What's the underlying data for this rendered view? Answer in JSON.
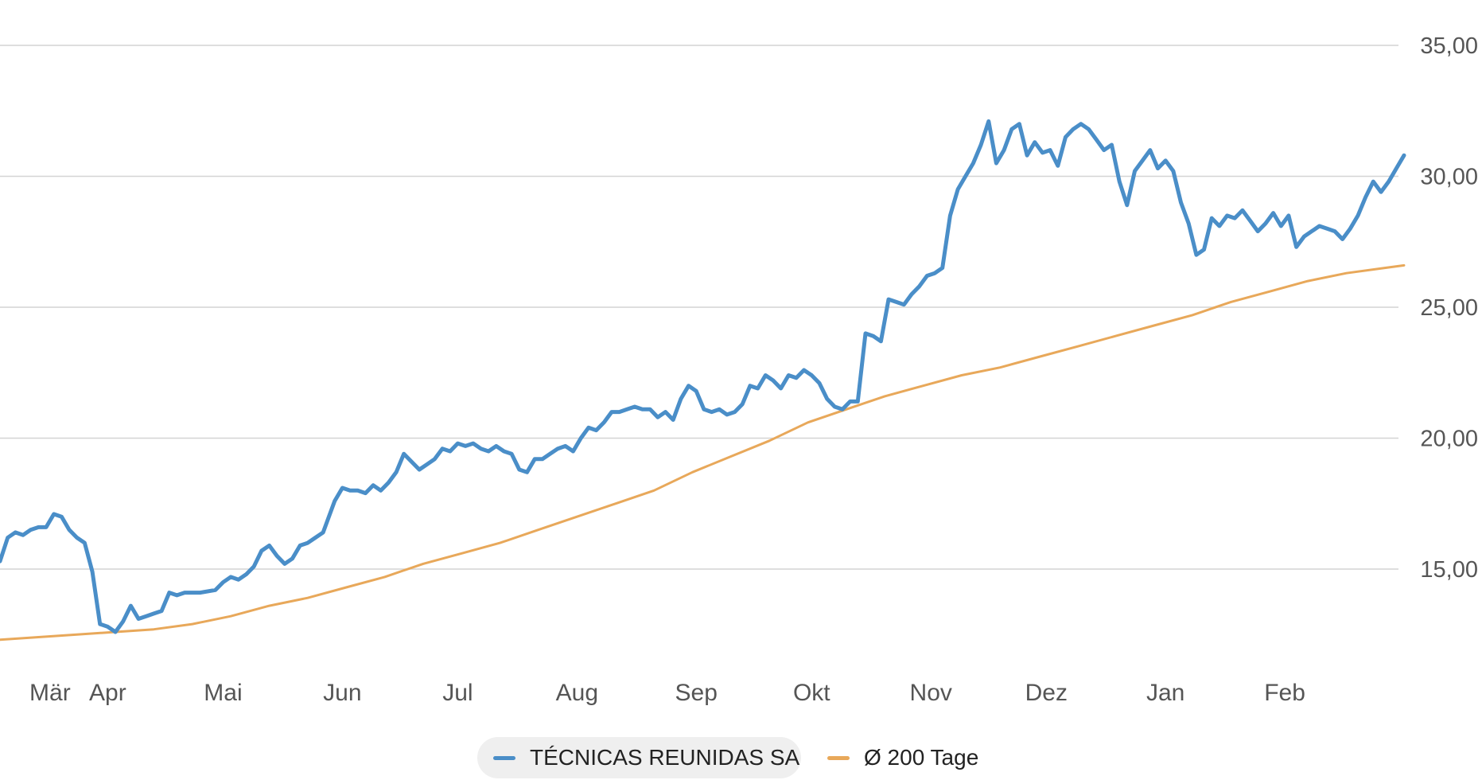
{
  "colors": {
    "price": "#4a8ec8",
    "avg": "#e8a85a",
    "grid": "#d4d4d4",
    "text": "#555555"
  },
  "legend": [
    {
      "label": "TÉCNICAS REUNIDAS SA",
      "color": "#4a8ec8"
    },
    {
      "label": "Ø 200 Tage",
      "color": "#e8a85a"
    }
  ],
  "chart_data": {
    "type": "line",
    "x_unit": "days since 2024-03-01",
    "xlim": [
      0,
      365
    ],
    "ylim": [
      12.8,
      36.8
    ],
    "y_axis_side": "right",
    "y_ticks": [
      15,
      20,
      25,
      30,
      35
    ],
    "y_tick_labels": [
      "15,00",
      "20,00",
      "25,00",
      "30,00",
      "35,00"
    ],
    "x_ticks": [
      {
        "label": "Mär",
        "x": 13
      },
      {
        "label": "Apr",
        "x": 28
      },
      {
        "label": "Mai",
        "x": 58
      },
      {
        "label": "Jun",
        "x": 89
      },
      {
        "label": "Jul",
        "x": 119
      },
      {
        "label": "Aug",
        "x": 150
      },
      {
        "label": "Sep",
        "x": 181
      },
      {
        "label": "Okt",
        "x": 211
      },
      {
        "label": "Nov",
        "x": 242
      },
      {
        "label": "Dez",
        "x": 272
      },
      {
        "label": "Jan",
        "x": 303
      },
      {
        "label": "Feb",
        "x": 334
      }
    ],
    "grid": "horizontal",
    "legend_position": "bottom-center",
    "series": [
      {
        "name": "TÉCNICAS REUNIDAS SA",
        "color": "#4a8ec8",
        "points": [
          [
            0,
            15.3
          ],
          [
            2,
            16.2
          ],
          [
            4,
            16.4
          ],
          [
            6,
            16.3
          ],
          [
            8,
            16.5
          ],
          [
            10,
            16.6
          ],
          [
            12,
            16.6
          ],
          [
            14,
            17.1
          ],
          [
            16,
            17.0
          ],
          [
            18,
            16.5
          ],
          [
            20,
            16.2
          ],
          [
            22,
            16.0
          ],
          [
            24,
            14.9
          ],
          [
            26,
            12.9
          ],
          [
            28,
            12.8
          ],
          [
            30,
            12.6
          ],
          [
            32,
            13.0
          ],
          [
            34,
            13.6
          ],
          [
            36,
            13.1
          ],
          [
            38,
            13.2
          ],
          [
            40,
            13.3
          ],
          [
            42,
            13.4
          ],
          [
            44,
            14.1
          ],
          [
            46,
            14.0
          ],
          [
            48,
            14.1
          ],
          [
            52,
            14.1
          ],
          [
            56,
            14.2
          ],
          [
            58,
            14.5
          ],
          [
            60,
            14.7
          ],
          [
            62,
            14.6
          ],
          [
            64,
            14.8
          ],
          [
            66,
            15.1
          ],
          [
            68,
            15.7
          ],
          [
            70,
            15.9
          ],
          [
            72,
            15.5
          ],
          [
            74,
            15.2
          ],
          [
            76,
            15.4
          ],
          [
            78,
            15.9
          ],
          [
            80,
            16.0
          ],
          [
            82,
            16.2
          ],
          [
            84,
            16.4
          ],
          [
            85,
            16.8
          ],
          [
            87,
            17.6
          ],
          [
            89,
            18.1
          ],
          [
            91,
            18.0
          ],
          [
            93,
            18.0
          ],
          [
            95,
            17.9
          ],
          [
            97,
            18.2
          ],
          [
            99,
            18.0
          ],
          [
            101,
            18.3
          ],
          [
            103,
            18.7
          ],
          [
            105,
            19.4
          ],
          [
            107,
            19.1
          ],
          [
            109,
            18.8
          ],
          [
            111,
            19.0
          ],
          [
            113,
            19.2
          ],
          [
            115,
            19.6
          ],
          [
            117,
            19.5
          ],
          [
            119,
            19.8
          ],
          [
            121,
            19.7
          ],
          [
            123,
            19.8
          ],
          [
            125,
            19.6
          ],
          [
            127,
            19.5
          ],
          [
            129,
            19.7
          ],
          [
            131,
            19.5
          ],
          [
            133,
            19.4
          ],
          [
            135,
            18.8
          ],
          [
            137,
            18.7
          ],
          [
            139,
            19.2
          ],
          [
            141,
            19.2
          ],
          [
            143,
            19.4
          ],
          [
            145,
            19.6
          ],
          [
            147,
            19.7
          ],
          [
            149,
            19.5
          ],
          [
            151,
            20.0
          ],
          [
            153,
            20.4
          ],
          [
            155,
            20.3
          ],
          [
            157,
            20.6
          ],
          [
            159,
            21.0
          ],
          [
            161,
            21.0
          ],
          [
            163,
            21.1
          ],
          [
            165,
            21.2
          ],
          [
            167,
            21.1
          ],
          [
            169,
            21.1
          ],
          [
            171,
            20.8
          ],
          [
            173,
            21.0
          ],
          [
            175,
            20.7
          ],
          [
            177,
            21.5
          ],
          [
            179,
            22.0
          ],
          [
            181,
            21.8
          ],
          [
            183,
            21.1
          ],
          [
            185,
            21.0
          ],
          [
            187,
            21.1
          ],
          [
            189,
            20.9
          ],
          [
            191,
            21.0
          ],
          [
            193,
            21.3
          ],
          [
            195,
            22.0
          ],
          [
            197,
            21.9
          ],
          [
            199,
            22.4
          ],
          [
            201,
            22.2
          ],
          [
            203,
            21.9
          ],
          [
            205,
            22.4
          ],
          [
            207,
            22.3
          ],
          [
            209,
            22.6
          ],
          [
            211,
            22.4
          ],
          [
            213,
            22.1
          ],
          [
            215,
            21.5
          ],
          [
            217,
            21.2
          ],
          [
            219,
            21.1
          ],
          [
            221,
            21.4
          ],
          [
            223,
            21.4
          ],
          [
            225,
            24.0
          ],
          [
            227,
            23.9
          ],
          [
            229,
            23.7
          ],
          [
            231,
            25.3
          ],
          [
            233,
            25.2
          ],
          [
            235,
            25.1
          ],
          [
            237,
            25.5
          ],
          [
            239,
            25.8
          ],
          [
            241,
            26.2
          ],
          [
            243,
            26.3
          ],
          [
            245,
            26.5
          ],
          [
            247,
            28.5
          ],
          [
            249,
            29.5
          ],
          [
            251,
            30.0
          ],
          [
            253,
            30.5
          ],
          [
            255,
            31.2
          ],
          [
            257,
            32.1
          ],
          [
            259,
            30.5
          ],
          [
            261,
            31.0
          ],
          [
            263,
            31.8
          ],
          [
            265,
            32.0
          ],
          [
            267,
            30.8
          ],
          [
            269,
            31.3
          ],
          [
            271,
            30.9
          ],
          [
            273,
            31.0
          ],
          [
            275,
            30.4
          ],
          [
            277,
            31.5
          ],
          [
            279,
            31.8
          ],
          [
            281,
            32.0
          ],
          [
            283,
            31.8
          ],
          [
            285,
            31.4
          ],
          [
            287,
            31.0
          ],
          [
            289,
            31.2
          ],
          [
            291,
            29.8
          ],
          [
            293,
            28.9
          ],
          [
            295,
            30.2
          ],
          [
            297,
            30.6
          ],
          [
            299,
            31.0
          ],
          [
            301,
            30.3
          ],
          [
            303,
            30.6
          ],
          [
            305,
            30.2
          ],
          [
            307,
            29.0
          ],
          [
            309,
            28.2
          ],
          [
            311,
            27.0
          ],
          [
            313,
            27.2
          ],
          [
            315,
            28.4
          ],
          [
            317,
            28.1
          ],
          [
            319,
            28.5
          ],
          [
            321,
            28.4
          ],
          [
            323,
            28.7
          ],
          [
            325,
            28.3
          ],
          [
            327,
            27.9
          ],
          [
            329,
            28.2
          ],
          [
            331,
            28.6
          ],
          [
            333,
            28.1
          ],
          [
            335,
            28.5
          ],
          [
            337,
            27.3
          ],
          [
            339,
            27.7
          ],
          [
            341,
            27.9
          ],
          [
            343,
            28.1
          ],
          [
            345,
            28.0
          ],
          [
            347,
            27.9
          ],
          [
            349,
            27.6
          ],
          [
            351,
            28.0
          ],
          [
            353,
            28.5
          ],
          [
            355,
            29.2
          ],
          [
            357,
            29.8
          ],
          [
            359,
            29.4
          ],
          [
            361,
            29.8
          ],
          [
            363,
            30.3
          ],
          [
            365,
            30.8
          ]
        ]
      },
      {
        "name": "Ø 200 Tage",
        "color": "#e8a85a",
        "points": [
          [
            0,
            12.3
          ],
          [
            20,
            12.5
          ],
          [
            30,
            12.6
          ],
          [
            40,
            12.7
          ],
          [
            50,
            12.9
          ],
          [
            60,
            13.2
          ],
          [
            70,
            13.6
          ],
          [
            80,
            13.9
          ],
          [
            90,
            14.3
          ],
          [
            100,
            14.7
          ],
          [
            110,
            15.2
          ],
          [
            120,
            15.6
          ],
          [
            130,
            16.0
          ],
          [
            140,
            16.5
          ],
          [
            150,
            17.0
          ],
          [
            160,
            17.5
          ],
          [
            170,
            18.0
          ],
          [
            180,
            18.7
          ],
          [
            190,
            19.3
          ],
          [
            200,
            19.9
          ],
          [
            210,
            20.6
          ],
          [
            220,
            21.1
          ],
          [
            230,
            21.6
          ],
          [
            240,
            22.0
          ],
          [
            250,
            22.4
          ],
          [
            260,
            22.7
          ],
          [
            270,
            23.1
          ],
          [
            280,
            23.5
          ],
          [
            290,
            23.9
          ],
          [
            300,
            24.3
          ],
          [
            310,
            24.7
          ],
          [
            320,
            25.2
          ],
          [
            330,
            25.6
          ],
          [
            340,
            26.0
          ],
          [
            350,
            26.3
          ],
          [
            360,
            26.5
          ],
          [
            365,
            26.6
          ]
        ]
      }
    ]
  }
}
